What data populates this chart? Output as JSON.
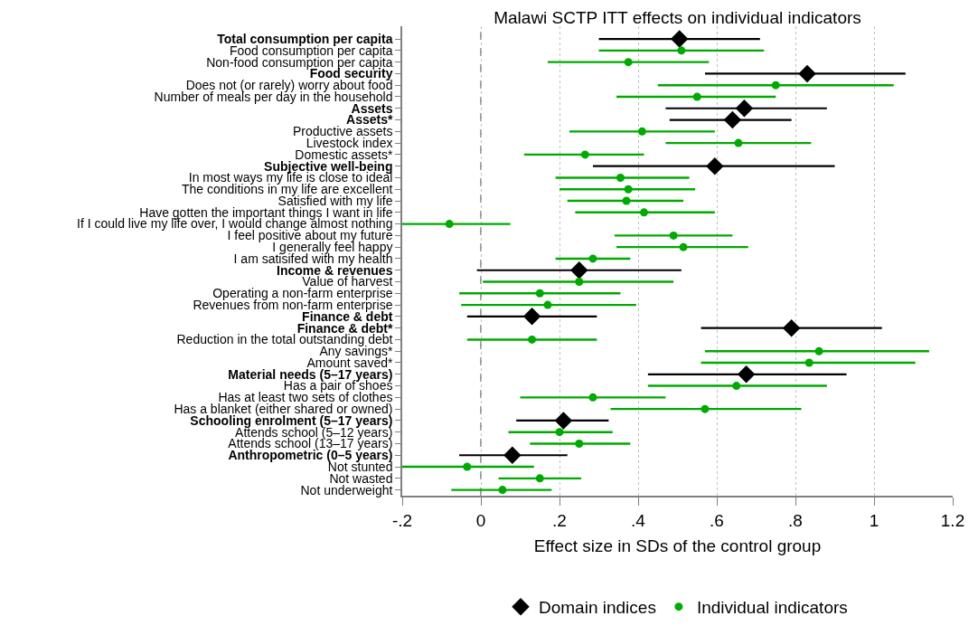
{
  "chart_data": {
    "type": "scatter",
    "orientation": "horizontal",
    "title": "Malawi SCTP ITT effects on individual indicators",
    "xlabel": "Effect size in SDs of the control group",
    "categories": [
      "Total consumption per capita",
      "Food consumption per capita",
      "Non-food consumption per capita",
      "Food security",
      "Does not (or rarely) worry about food",
      "Number of meals per day in the household",
      "Assets",
      "Assets*",
      "Productive assets",
      "Livestock index",
      "Domestic assets*",
      "Subjective well-being",
      "In most ways my life is close to ideal",
      "The conditions in my life are excellent",
      "Satisfied with my life",
      "Have gotten the important things I want in life",
      "If I could live my life over, I would change almost nothing",
      "I feel positive about my future",
      "I generally feel happy",
      "I am satisifed with my health",
      "Income & revenues",
      "Value of harvest",
      "Operating a non-farm enterprise",
      "Revenues from non-farm enterprise",
      "Finance & debt",
      "Finance & debt*",
      "Reduction in the total outstanding debt",
      "Any savings*",
      "Amount saved*",
      "Material needs (5–17 years)",
      "Has a pair of shoes",
      "Has at least two sets of clothes",
      "Has a blanket (either shared or owned)",
      "Schooling enrolment (5–17 years)",
      "Attends school (5–12 years)",
      "Attends school (13–17 years)",
      "Anthropometric (0–5 years)",
      "Not stunted",
      "Not wasted",
      "Not underweight"
    ],
    "series": [
      {
        "name": "Domain indices",
        "color": "#000000",
        "marker": "diamond",
        "values": [
          0.505,
          null,
          null,
          0.83,
          null,
          null,
          0.67,
          0.64,
          null,
          null,
          null,
          0.595,
          null,
          null,
          null,
          null,
          null,
          null,
          null,
          null,
          0.25,
          null,
          null,
          null,
          0.13,
          0.79,
          null,
          null,
          null,
          0.675,
          null,
          null,
          null,
          0.21,
          null,
          null,
          0.08,
          null,
          null,
          null
        ],
        "errors": [
          [
            0.3,
            0.71
          ],
          null,
          null,
          [
            0.57,
            1.08
          ],
          null,
          null,
          [
            0.47,
            0.88
          ],
          [
            0.48,
            0.79
          ],
          null,
          null,
          null,
          [
            0.285,
            0.9
          ],
          null,
          null,
          null,
          null,
          null,
          null,
          null,
          null,
          [
            -0.01,
            0.51
          ],
          null,
          null,
          null,
          [
            -0.035,
            0.295
          ],
          [
            0.56,
            1.02
          ],
          null,
          null,
          null,
          [
            0.425,
            0.93
          ],
          null,
          null,
          null,
          [
            0.09,
            0.325
          ],
          null,
          null,
          [
            -0.055,
            0.22
          ],
          null,
          null,
          null
        ]
      },
      {
        "name": "Individual indicators",
        "color": "#00aa00",
        "marker": "circle",
        "values": [
          null,
          0.51,
          0.375,
          null,
          0.75,
          0.55,
          null,
          null,
          0.41,
          0.655,
          0.265,
          null,
          0.355,
          0.375,
          0.37,
          0.415,
          -0.08,
          0.49,
          0.515,
          0.285,
          null,
          0.25,
          0.15,
          0.17,
          null,
          null,
          0.13,
          0.86,
          0.835,
          null,
          0.65,
          0.285,
          0.57,
          null,
          0.2,
          0.25,
          null,
          -0.035,
          0.15,
          0.055
        ],
        "errors": [
          null,
          [
            0.3,
            0.72
          ],
          [
            0.17,
            0.58
          ],
          null,
          [
            0.45,
            1.05
          ],
          [
            0.345,
            0.75
          ],
          null,
          null,
          [
            0.225,
            0.595
          ],
          [
            0.47,
            0.84
          ],
          [
            0.11,
            0.415
          ],
          null,
          [
            0.19,
            0.53
          ],
          [
            0.2,
            0.545
          ],
          [
            0.22,
            0.515
          ],
          [
            0.24,
            0.595
          ],
          [
            -0.23,
            0.075
          ],
          [
            0.34,
            0.64
          ],
          [
            0.345,
            0.68
          ],
          [
            0.19,
            0.38
          ],
          null,
          [
            0.005,
            0.49
          ],
          [
            -0.055,
            0.355
          ],
          [
            -0.05,
            0.395
          ],
          null,
          null,
          [
            -0.035,
            0.295
          ],
          [
            0.57,
            1.14
          ],
          [
            0.56,
            1.105
          ],
          null,
          [
            0.425,
            0.88
          ],
          [
            0.1,
            0.47
          ],
          [
            0.33,
            0.815
          ],
          null,
          [
            0.07,
            0.335
          ],
          [
            0.125,
            0.38
          ],
          null,
          [
            -0.2,
            0.135
          ],
          [
            0.045,
            0.255
          ],
          [
            -0.075,
            0.18
          ]
        ]
      }
    ],
    "xlim": [
      -0.2,
      1.2
    ],
    "xticks": [
      {
        "value": -0.2,
        "label": "-.2"
      },
      0,
      {
        "value": 0.2,
        "label": ".2"
      },
      {
        "value": 0.4,
        "label": ".4"
      },
      {
        "value": 0.6,
        "label": ".6"
      },
      {
        "value": 0.8,
        "label": ".8"
      },
      1,
      1.2
    ],
    "grid": "x",
    "legend": "bottom",
    "ref_lines": [
      {
        "axis": "x",
        "value": 0,
        "color": "#808080",
        "line_style": "dashed"
      }
    ]
  }
}
